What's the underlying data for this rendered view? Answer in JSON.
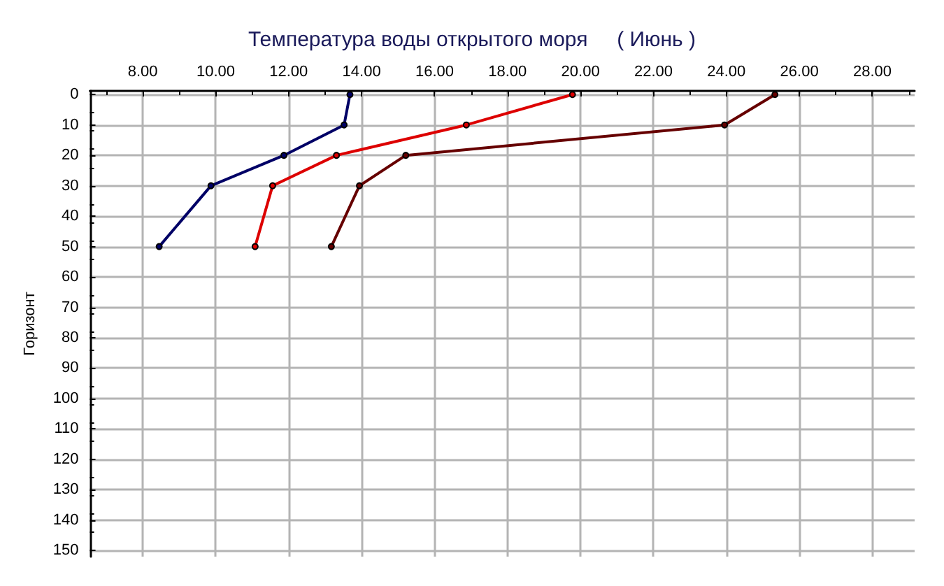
{
  "chart_data": {
    "type": "line",
    "title": "Температура воды открытого моря     ( Июнь )",
    "ylabel": "Горизонт",
    "xlim": [
      6.55,
      29.16
    ],
    "xticks": [
      {
        "value": 8,
        "label": "8.00"
      },
      {
        "value": 10,
        "label": "10.00"
      },
      {
        "value": 12,
        "label": "12.00"
      },
      {
        "value": 14,
        "label": "14.00"
      },
      {
        "value": 16,
        "label": "16.00"
      },
      {
        "value": 18,
        "label": "18.00"
      },
      {
        "value": 20,
        "label": "20.00"
      },
      {
        "value": 22,
        "label": "22.00"
      },
      {
        "value": 24,
        "label": "24.00"
      },
      {
        "value": 26,
        "label": "26.00"
      },
      {
        "value": 28,
        "label": "28.00"
      }
    ],
    "ylim": [
      152,
      -1.2
    ],
    "yticks": [
      0,
      10,
      20,
      30,
      40,
      50,
      60,
      70,
      80,
      90,
      100,
      110,
      120,
      130,
      140,
      150
    ],
    "grid": true,
    "marker": "circle",
    "line_style": "solid",
    "series": [
      {
        "color": "#000066",
        "x": [
          13.68,
          13.52,
          11.87,
          9.87,
          8.45
        ],
        "values": [
          0,
          10,
          20,
          30,
          50
        ]
      },
      {
        "color": "#dd0000",
        "x": [
          19.78,
          16.87,
          13.31,
          11.56,
          11.08
        ],
        "values": [
          0,
          10,
          20,
          30,
          50
        ]
      },
      {
        "color": "#660000",
        "x": [
          25.33,
          23.95,
          15.21,
          13.94,
          13.17
        ],
        "values": [
          0,
          10,
          20,
          30,
          50
        ]
      }
    ]
  }
}
